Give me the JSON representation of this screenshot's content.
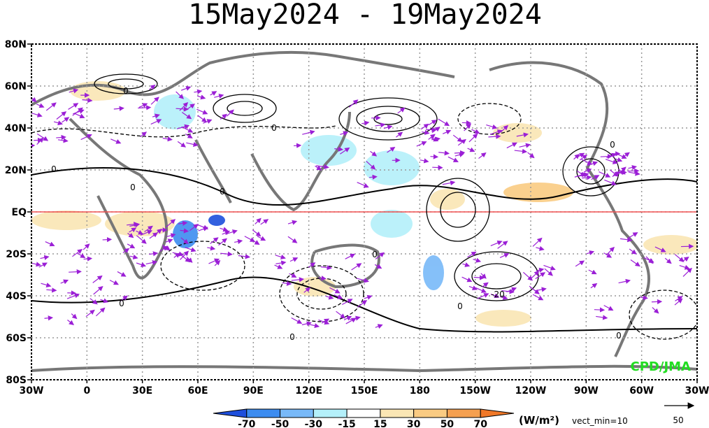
{
  "title": "15May2024 - 19May2024",
  "lat_labels": [
    "80N",
    "60N",
    "40N",
    "20N",
    "EQ",
    "20S",
    "40S",
    "60S",
    "80S"
  ],
  "lon_labels": [
    "30W",
    "0",
    "30E",
    "60E",
    "90E",
    "120E",
    "150E",
    "180",
    "150W",
    "120W",
    "90W",
    "60W",
    "30W"
  ],
  "colorbar": {
    "labels": [
      "-70",
      "-50",
      "-30",
      "-15",
      "15",
      "30",
      "50",
      "70"
    ],
    "colors": [
      "#1e4fdc",
      "#3c8cf0",
      "#78b9f8",
      "#b4f0fa",
      "#ffffff",
      "#fae6b4",
      "#facb82",
      "#f5a050",
      "#f07828"
    ]
  },
  "units": "(W/m²)",
  "vect_min": "vect_min=10",
  "ref_vector": "50",
  "credit": "CPD/JMA",
  "contour_labels": [
    "0",
    "0",
    "0",
    "0",
    "0",
    "0",
    "0",
    "0",
    "0",
    "0",
    "0",
    "-20"
  ]
}
